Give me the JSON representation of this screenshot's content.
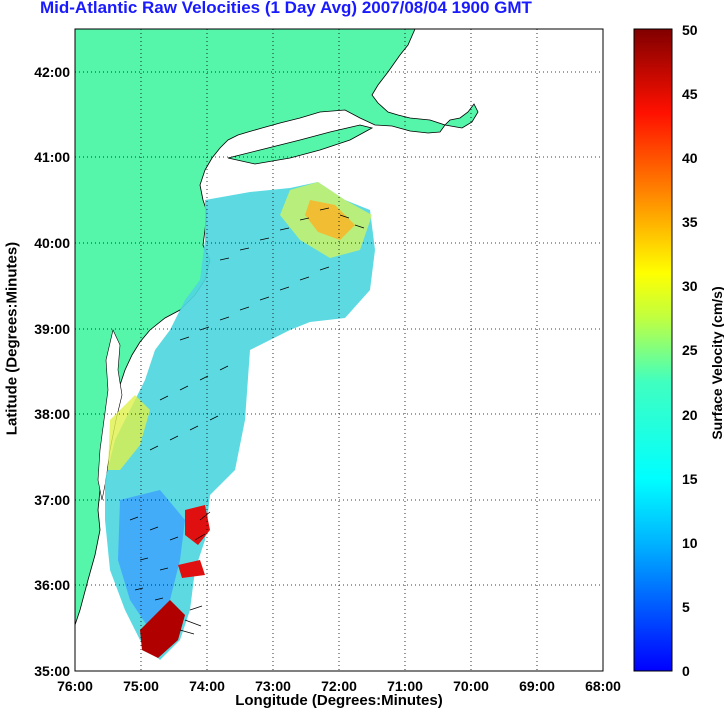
{
  "title": "Mid-Atlantic Raw Velocities (1 Day Avg) 2007/08/04 1900 GMT",
  "xlabel": "Longitude (Degrees:Minutes)",
  "ylabel": "Latitude (Degrees:Minutes)",
  "colorbar": {
    "label": "Surface Velocity (cm/s)",
    "min": 0,
    "max": 50,
    "ticks": [
      "0",
      "5",
      "10",
      "15",
      "20",
      "25",
      "30",
      "35",
      "40",
      "45",
      "50"
    ]
  },
  "map": {
    "lon_range": [
      -76,
      -68
    ],
    "lat_range": [
      35,
      42.5
    ],
    "x_ticks": [
      "76:00",
      "75:00",
      "74:00",
      "73:00",
      "72:00",
      "71:00",
      "70:00",
      "69:00",
      "68:00"
    ],
    "y_ticks": [
      "35:00",
      "36:00",
      "37:00",
      "38:00",
      "39:00",
      "40:00",
      "41:00",
      "42:00"
    ],
    "land_color": "#55f5aa",
    "grid": "dotted"
  }
}
